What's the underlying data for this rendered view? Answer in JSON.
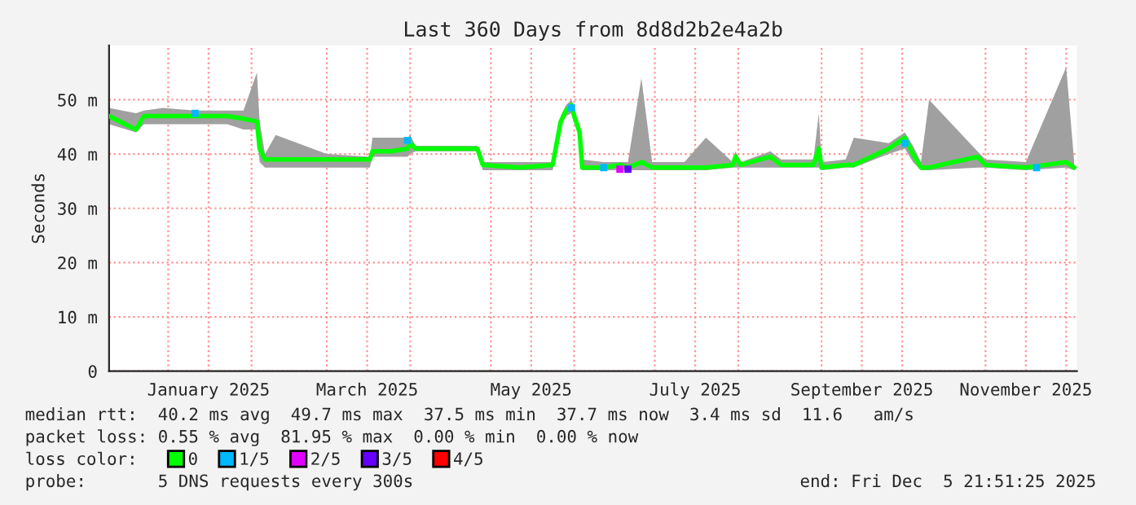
{
  "chart_data": {
    "type": "line",
    "title": "Last 360 Days from 8d8d2b2e4a2b",
    "ylabel": "Seconds",
    "xlim": [
      "2024-12-10",
      "2025-12-05"
    ],
    "xticks": [
      {
        "value": "2025-01-01",
        "label": null
      },
      {
        "value": "2025-01-16",
        "label": "January 2025"
      },
      {
        "value": "2025-02-01",
        "label": null
      },
      {
        "value": "2025-03-01",
        "label": null
      },
      {
        "value": "2025-03-16",
        "label": "March 2025"
      },
      {
        "value": "2025-04-01",
        "label": null
      },
      {
        "value": "2025-05-01",
        "label": null
      },
      {
        "value": "2025-05-16",
        "label": "May 2025"
      },
      {
        "value": "2025-06-01",
        "label": null
      },
      {
        "value": "2025-07-01",
        "label": null
      },
      {
        "value": "2025-07-16",
        "label": "July 2025"
      },
      {
        "value": "2025-08-01",
        "label": null
      },
      {
        "value": "2025-09-01",
        "label": null
      },
      {
        "value": "2025-09-16",
        "label": "September 2025"
      },
      {
        "value": "2025-10-01",
        "label": null
      },
      {
        "value": "2025-11-01",
        "label": null
      },
      {
        "value": "2025-11-16",
        "label": "November 2025"
      },
      {
        "value": "2025-12-01",
        "label": null
      }
    ],
    "ylim": [
      0,
      60
    ],
    "yticks": [
      0,
      {
        "value": 10,
        "label": "10 m"
      },
      {
        "value": 20,
        "label": "20 m"
      },
      {
        "value": 30,
        "label": "30 m"
      },
      {
        "value": 40,
        "label": "40 m"
      },
      {
        "value": 50,
        "label": "50 m"
      }
    ],
    "grid": true,
    "legend": "bottom left",
    "legend_title": "loss color:",
    "series": [
      {
        "name": "0",
        "color": "#00ff00",
        "x": [
          "2024-12-10",
          "2024-12-20",
          "2024-12-23",
          "2024-12-30",
          "2025-01-11",
          "2025-01-23",
          "2025-01-29",
          "2025-02-03",
          "2025-02-04",
          "2025-02-06",
          "2025-02-10",
          "2025-03-01",
          "2025-03-17",
          "2025-03-18",
          "2025-03-25",
          "2025-03-31",
          "2025-04-01",
          "2025-04-03",
          "2025-04-12",
          "2025-04-26",
          "2025-04-28",
          "2025-05-12",
          "2025-05-24",
          "2025-05-27",
          "2025-05-29",
          "2025-05-31",
          "2025-06-01",
          "2025-06-03",
          "2025-06-04",
          "2025-06-12",
          "2025-06-18",
          "2025-06-21",
          "2025-06-26",
          "2025-06-30",
          "2025-07-12",
          "2025-07-20",
          "2025-07-30",
          "2025-07-31",
          "2025-08-02",
          "2025-08-13",
          "2025-08-17",
          "2025-08-29",
          "2025-08-31",
          "2025-09-01",
          "2025-09-10",
          "2025-09-13",
          "2025-09-26",
          "2025-10-02",
          "2025-10-05",
          "2025-10-08",
          "2025-10-11",
          "2025-10-29",
          "2025-11-01",
          "2025-11-16",
          "2025-12-01",
          "2025-12-04"
        ],
        "values": [
          47,
          44.5,
          47,
          47,
          47,
          47,
          46.5,
          46,
          41,
          39,
          39,
          39,
          39,
          40.5,
          40.5,
          41,
          42,
          41,
          41,
          41,
          38,
          37.5,
          38,
          46,
          48,
          49,
          47,
          44,
          37.5,
          37.5,
          38,
          37.5,
          38.5,
          37.5,
          37.5,
          37.5,
          38,
          39.5,
          38,
          39.5,
          38,
          38,
          41,
          37.5,
          38,
          38,
          41,
          43,
          40,
          37.5,
          37.5,
          39.5,
          38,
          37.5,
          38.5,
          37.5
        ],
        "lower": [
          45.5,
          44,
          45.5,
          45.5,
          45.5,
          45.5,
          44.5,
          44.5,
          38.5,
          37.5,
          37.5,
          37.5,
          37.5,
          39.5,
          39.5,
          39.5,
          40,
          40.5,
          40.5,
          40.5,
          37,
          37,
          37,
          45,
          47,
          47.5,
          46,
          43,
          37,
          37,
          37,
          37,
          37,
          37,
          37,
          37,
          37.5,
          37.5,
          37.5,
          37.5,
          37.5,
          37.5,
          37.5,
          37,
          37.5,
          37.5,
          40,
          41,
          38.5,
          37,
          37,
          37.5,
          37.5,
          37,
          37.5,
          37
        ],
        "upper": [
          48.5,
          47.5,
          48,
          48.5,
          48,
          48,
          48,
          55,
          46,
          40,
          43.5,
          40,
          39.5,
          43,
          43,
          43,
          43.5,
          41.5,
          41.5,
          41.5,
          38.5,
          38.5,
          38.5,
          47,
          49,
          50,
          48.5,
          45,
          39,
          38.5,
          38.5,
          38.5,
          54,
          38.5,
          38.5,
          43,
          38.5,
          40.5,
          38.5,
          40.5,
          39,
          39,
          47.5,
          38.5,
          39,
          43,
          42,
          44,
          41.5,
          38.5,
          50,
          40.5,
          39,
          38.5,
          56,
          38.5
        ]
      },
      {
        "name": "1/5",
        "type": "scatter",
        "color": "#00b8ff",
        "x": [
          "2025-01-11",
          "2025-03-31",
          "2025-05-31",
          "2025-06-12",
          "2025-10-02",
          "2025-11-20"
        ],
        "values": [
          47.5,
          42.5,
          48.5,
          37.5,
          42,
          37.5
        ]
      },
      {
        "name": "2/5",
        "type": "scatter",
        "color": "#e000ff",
        "x": [
          "2025-06-18"
        ],
        "values": [
          37.2
        ]
      },
      {
        "name": "3/5",
        "type": "scatter",
        "color": "#6600ff",
        "x": [
          "2025-06-21"
        ],
        "values": [
          37.2
        ]
      },
      {
        "name": "4/5",
        "type": "scatter",
        "color": "#ff0000"
      }
    ],
    "annotations": [
      "median rtt:  40.2 ms avg  49.7 ms max  37.5 ms min  37.7 ms now  3.4 ms sd  11.6   am/s",
      "packet loss: 0.55 % avg  81.95 % max  0.00 % min  0.00 % now",
      "probe:       5 DNS requests every 300s",
      "end: Fri Dec  5 21:51:25 2025"
    ]
  }
}
